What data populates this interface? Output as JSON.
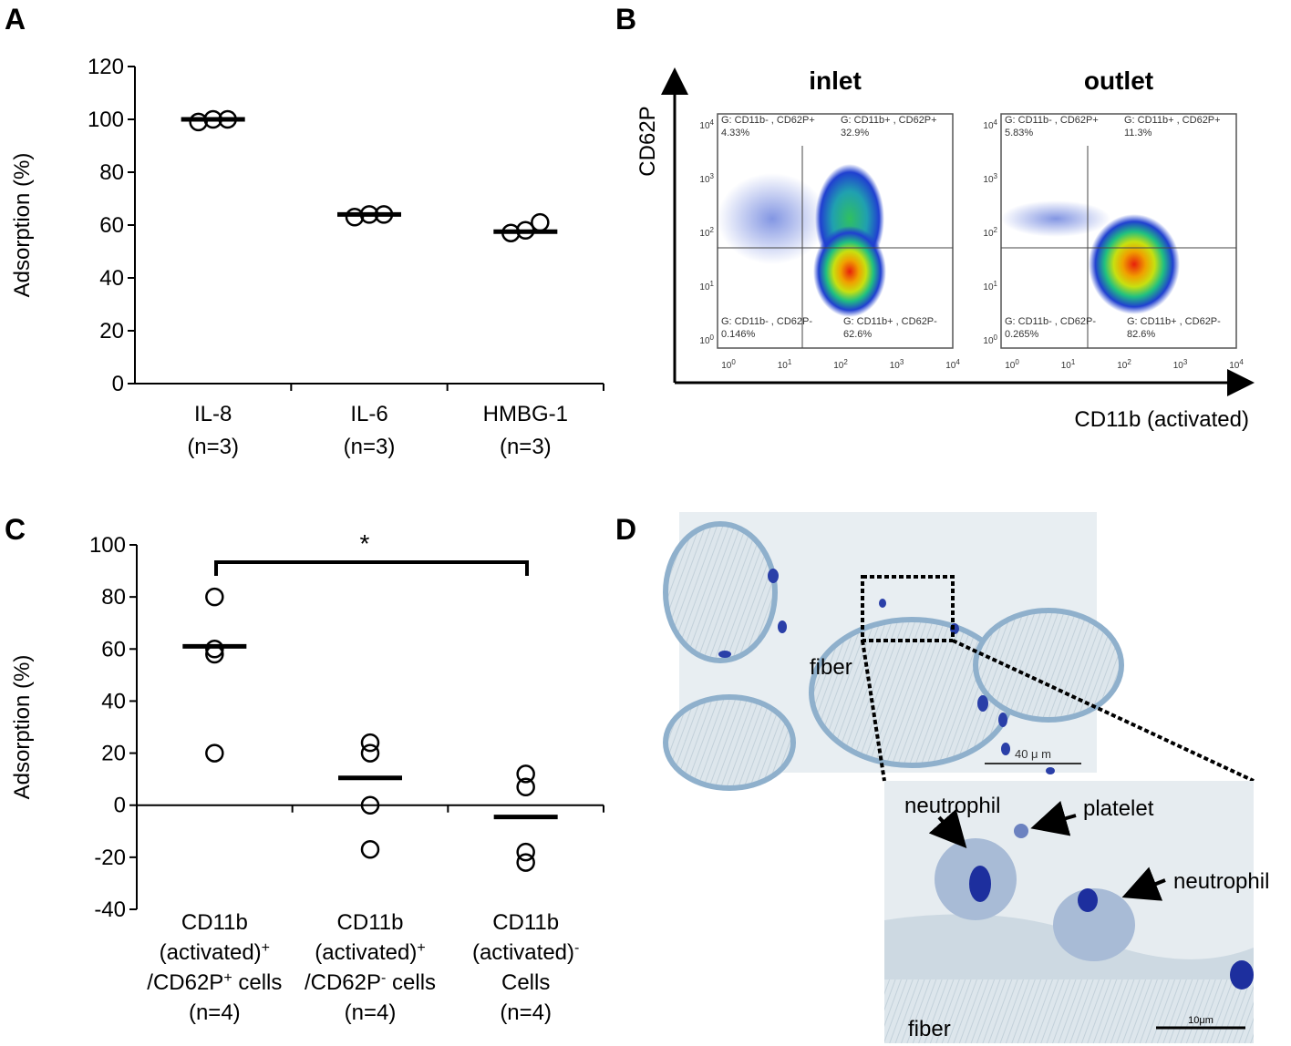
{
  "chart_data": [
    {
      "type": "dotplot",
      "label": "A",
      "ylabel": "Adsorption (%)",
      "categories": [
        [
          [
            "IL-8"
          ],
          [
            "(n=3)"
          ]
        ],
        [
          [
            "IL-6"
          ],
          [
            "(n=3)"
          ]
        ],
        [
          [
            "HMBG-1"
          ],
          [
            "(n=3)"
          ]
        ]
      ],
      "points": [
        [
          99,
          100,
          100
        ],
        [
          63,
          64,
          64
        ],
        [
          57,
          58,
          61
        ]
      ],
      "means": [
        100,
        64,
        57.5
      ],
      "ylim": [
        0,
        120
      ],
      "yticks": [
        0,
        20,
        40,
        60,
        80,
        100,
        120
      ]
    },
    {
      "type": "dotplot",
      "label": "C",
      "ylabel": "Adsorption (%)",
      "annotation": "*",
      "categories": [
        [
          [
            "CD11b"
          ],
          [
            "(activated)",
            "+"
          ],
          [
            "/CD62P",
            "+",
            " cells"
          ],
          [
            "(n=4)"
          ]
        ],
        [
          [
            "CD11b"
          ],
          [
            "(activated)",
            "+"
          ],
          [
            "/CD62P",
            "-",
            " cells"
          ],
          [
            "(n=4)"
          ]
        ],
        [
          [
            "CD11b"
          ],
          [
            "(activated)",
            "-"
          ],
          [
            "Cells"
          ],
          [
            "(n=4)"
          ]
        ]
      ],
      "points": [
        [
          80,
          60,
          58,
          20
        ],
        [
          24,
          20,
          0,
          -17
        ],
        [
          12,
          7,
          -18,
          -22
        ]
      ],
      "means": [
        61,
        10.5,
        -4.5
      ],
      "ylim": [
        -40,
        100
      ],
      "yticks": [
        -40,
        -20,
        0,
        20,
        40,
        60,
        80,
        100
      ]
    }
  ],
  "flow": {
    "label": "B",
    "x_label": "CD11b (activated)",
    "y_label": "CD62P",
    "ticks": [
      [
        "10",
        "0"
      ],
      [
        "10",
        "1"
      ],
      [
        "10",
        "2"
      ],
      [
        "10",
        "3"
      ],
      [
        "10",
        "4"
      ]
    ],
    "plots": [
      {
        "title": "inlet",
        "quadrants": [
          [
            "G: CD11b- , CD62P+",
            "4.33%"
          ],
          [
            "G: CD11b+ , CD62P+",
            "32.9%"
          ],
          [
            "G: CD11b- , CD62P-",
            "0.146%"
          ],
          [
            "G: CD11b+ , CD62P-",
            "62.6%"
          ]
        ]
      },
      {
        "title": "outlet",
        "quadrants": [
          [
            "G: CD11b- , CD62P+",
            "5.83%"
          ],
          [
            "G: CD11b+ , CD62P+",
            "11.3%"
          ],
          [
            "G: CD11b- , CD62P-",
            "0.265%"
          ],
          [
            "G: CD11b+ , CD62P-",
            "82.6%"
          ]
        ]
      }
    ]
  },
  "micrograph": {
    "label": "D",
    "overview_label": "fiber",
    "overview_scale": "40 μ m",
    "zoom_labels": [
      "neutrophil",
      "platelet",
      "neutrophil",
      "fiber"
    ],
    "zoom_scale": "10μm"
  }
}
